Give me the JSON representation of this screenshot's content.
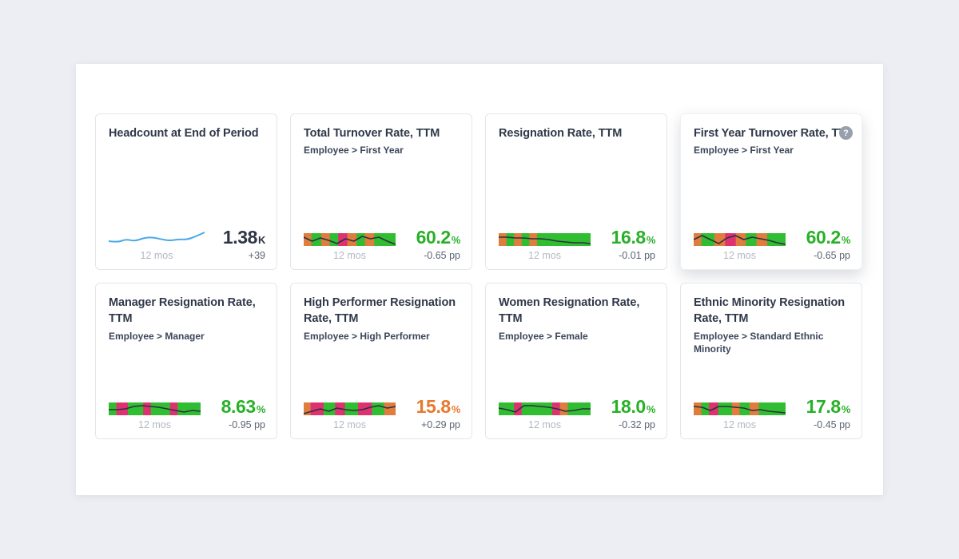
{
  "colors": {
    "page_bg": "#eceef3",
    "panel_bg": "#ffffff",
    "band_green": "#31bd31",
    "band_orange": "#e07c3e",
    "band_pink": "#dd3270",
    "spark_line": "#2b3140",
    "headcount_line": "#4aa9e8",
    "value_green": "#29b029",
    "value_orange": "#e8782d",
    "value_dark": "#2e3545"
  },
  "cards": [
    {
      "title": "Headcount at End of Period",
      "subtitle": "",
      "help": false,
      "elevated": false,
      "type": "line",
      "value": "1.38",
      "suffix": "K",
      "value_color": "dark",
      "delta": "+39",
      "period": "12 mos",
      "band": [],
      "line": [
        15,
        16.5,
        12.5,
        15,
        11,
        10,
        12.5,
        14.5,
        12.5,
        13,
        9,
        4
      ]
    },
    {
      "title": "Total Turnover Rate, TTM",
      "subtitle": "Employee > First Year",
      "help": false,
      "elevated": false,
      "type": "band",
      "value": "60.2",
      "suffix": "%",
      "value_color": "green",
      "delta": "-0.65 pp",
      "period": "12 mos",
      "band": [
        [
          "o",
          1
        ],
        [
          "g",
          1.3
        ],
        [
          "o",
          1.1
        ],
        [
          "g",
          1.1
        ],
        [
          "p",
          1.2
        ],
        [
          "o",
          1.2
        ],
        [
          "g",
          1.1
        ],
        [
          "o",
          1.2
        ],
        [
          "g",
          2.8
        ]
      ],
      "line": [
        5,
        10,
        6,
        9,
        13,
        7,
        10,
        4,
        7,
        5,
        10,
        14
      ]
    },
    {
      "title": "Resignation Rate, TTM",
      "subtitle": "",
      "help": false,
      "elevated": false,
      "type": "band",
      "value": "16.8",
      "suffix": "%",
      "value_color": "green",
      "delta": "-0.01 pp",
      "period": "12 mos",
      "band": [
        [
          "o",
          1
        ],
        [
          "g",
          1
        ],
        [
          "o",
          1
        ],
        [
          "g",
          1
        ],
        [
          "o",
          1
        ],
        [
          "g",
          7
        ]
      ],
      "line": [
        5,
        5,
        6,
        6,
        7,
        7,
        8,
        10,
        11,
        12,
        12,
        13
      ]
    },
    {
      "title": "First Year Turnover Rate, TTM",
      "subtitle": "Employee > First Year",
      "help": true,
      "elevated": true,
      "type": "band",
      "value": "60.2",
      "suffix": "%",
      "value_color": "green",
      "delta": "-0.65 pp",
      "period": "12 mos",
      "band": [
        [
          "o",
          1
        ],
        [
          "g",
          1.7
        ],
        [
          "o",
          1.4
        ],
        [
          "p",
          1.4
        ],
        [
          "o",
          1.3
        ],
        [
          "g",
          1.4
        ],
        [
          "o",
          1.4
        ],
        [
          "g",
          2.4
        ]
      ],
      "line": [
        8,
        3,
        8,
        13,
        6,
        3,
        8,
        5,
        7,
        9,
        12,
        14
      ]
    },
    {
      "title": "Manager Resignation Rate, TTM",
      "subtitle": "Employee > Manager",
      "help": false,
      "elevated": false,
      "type": "band",
      "value": "8.63",
      "suffix": "%",
      "value_color": "green",
      "delta": "-0.95 pp",
      "period": "12 mos",
      "band": [
        [
          "g",
          1
        ],
        [
          "p",
          1.5
        ],
        [
          "g",
          2
        ],
        [
          "p",
          1
        ],
        [
          "g",
          2.5
        ],
        [
          "p",
          1
        ],
        [
          "g",
          3
        ]
      ],
      "line": [
        9,
        9,
        8,
        5,
        4,
        5,
        6,
        8,
        10,
        12,
        10,
        11
      ]
    },
    {
      "title": "High Performer Resignation Rate, TTM",
      "subtitle": "Employee > High Performer",
      "help": false,
      "elevated": false,
      "type": "band",
      "value": "15.8",
      "suffix": "%",
      "value_color": "orange",
      "delta": "+0.29 pp",
      "period": "12 mos",
      "band": [
        [
          "o",
          0.9
        ],
        [
          "p",
          1.7
        ],
        [
          "g",
          1.5
        ],
        [
          "p",
          1.3
        ],
        [
          "g",
          1.7
        ],
        [
          "p",
          1.8
        ],
        [
          "g",
          1.6
        ],
        [
          "o",
          1.5
        ]
      ],
      "line": [
        14,
        11,
        8,
        11,
        7,
        9,
        10,
        9,
        6,
        4,
        7,
        5
      ]
    },
    {
      "title": "Women Resignation Rate, TTM",
      "subtitle": "Employee > Female",
      "help": false,
      "elevated": false,
      "type": "band",
      "value": "18.0",
      "suffix": "%",
      "value_color": "green",
      "delta": "-0.32 pp",
      "period": "12 mos",
      "band": [
        [
          "g",
          2
        ],
        [
          "p",
          1
        ],
        [
          "g",
          4
        ],
        [
          "p",
          1
        ],
        [
          "o",
          1
        ],
        [
          "g",
          3
        ]
      ],
      "line": [
        7,
        9,
        12,
        4,
        4,
        5,
        6,
        8,
        11,
        10,
        8,
        8
      ]
    },
    {
      "title": "Ethnic Minority Resignation Rate, TTM",
      "subtitle": "Employee > Standard Ethnic Minority",
      "help": false,
      "elevated": false,
      "type": "band",
      "value": "17.8",
      "suffix": "%",
      "value_color": "green",
      "delta": "-0.45 pp",
      "period": "12 mos",
      "band": [
        [
          "o",
          1
        ],
        [
          "g",
          1
        ],
        [
          "p",
          1.2
        ],
        [
          "g",
          1.8
        ],
        [
          "o",
          1
        ],
        [
          "g",
          1.3
        ],
        [
          "o",
          1.2
        ],
        [
          "g",
          3.5
        ]
      ],
      "line": [
        5,
        6,
        10,
        5,
        5,
        6,
        7,
        10,
        9,
        11,
        12,
        13
      ]
    }
  ]
}
